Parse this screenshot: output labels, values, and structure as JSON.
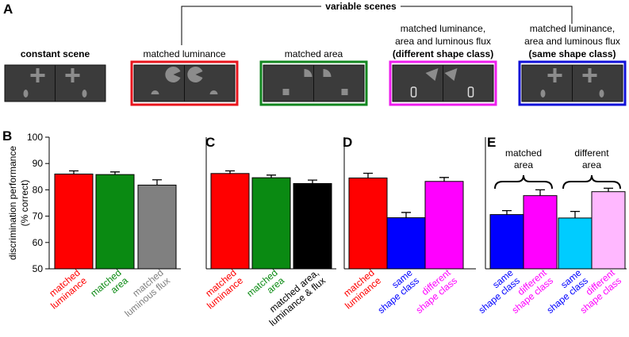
{
  "panel_a": {
    "label": "A",
    "group_title": "variable scenes",
    "scenes": [
      {
        "heading": "constant scene"
      },
      {
        "lines": [
          "matched luminance"
        ],
        "frame": "#e8141c"
      },
      {
        "lines": [
          "matched area"
        ],
        "frame": "#11861f"
      },
      {
        "lines": [
          "matched luminance,",
          "area and luminous flux"
        ],
        "note": "(different shape class)",
        "frame": "#ee1cee"
      },
      {
        "lines": [
          "matched luminance,",
          "area and luminous flux"
        ],
        "note": "(same shape class)",
        "frame": "#1010d8"
      }
    ]
  },
  "chart_data": [
    {
      "type": "bar",
      "label": "B",
      "ylabel": [
        "discrimination performance",
        "(% correct)"
      ],
      "ylim": [
        50,
        100
      ],
      "yticks": [
        50,
        60,
        70,
        80,
        90,
        100
      ],
      "categories": [
        [
          "matched",
          "luminance"
        ],
        [
          "matched",
          "area"
        ],
        [
          "matched",
          "luminous flux"
        ]
      ],
      "values": [
        86,
        85.8,
        81.8
      ],
      "errors": [
        1.2,
        1.0,
        2.0
      ],
      "colors": [
        "#ff0000",
        "#0a8a12",
        "#808080"
      ],
      "label_colors": [
        "#ff0000",
        "#0a8a12",
        "#808080"
      ]
    },
    {
      "type": "bar",
      "label": "C",
      "ylim": [
        50,
        100
      ],
      "categories": [
        [
          "matched",
          "luminance"
        ],
        [
          "matched",
          "area"
        ],
        [
          "matched area,",
          "luminance & flux"
        ]
      ],
      "values": [
        86.2,
        84.6,
        82.4
      ],
      "errors": [
        1.0,
        1.0,
        1.3
      ],
      "colors": [
        "#ff0000",
        "#0a8a12",
        "#000000"
      ],
      "label_colors": [
        "#ff0000",
        "#0a8a12",
        "#000000"
      ]
    },
    {
      "type": "bar",
      "label": "D",
      "ylim": [
        50,
        100
      ],
      "categories": [
        [
          "matched",
          "luminance"
        ],
        [
          "same",
          "shape class"
        ],
        [
          "different",
          "shape class"
        ]
      ],
      "values": [
        84.5,
        69.4,
        83.2
      ],
      "errors": [
        1.8,
        2.0,
        1.5
      ],
      "colors": [
        "#ff0000",
        "#0000ff",
        "#ff00ff"
      ],
      "label_colors": [
        "#ff0000",
        "#0000ff",
        "#ff00ff"
      ]
    },
    {
      "type": "bar",
      "label": "E",
      "ylim": [
        50,
        100
      ],
      "categories": [
        [
          "same",
          "shape class"
        ],
        [
          "different",
          "shape class"
        ],
        [
          "same",
          "shape class"
        ],
        [
          "different",
          "shape class"
        ]
      ],
      "values": [
        70.6,
        77.8,
        69.3,
        79.3
      ],
      "errors": [
        1.5,
        2.2,
        2.5,
        1.3
      ],
      "colors": [
        "#0000ff",
        "#ff00ff",
        "#00ccff",
        "#ffb8ff"
      ],
      "label_colors": [
        "#0000ff",
        "#ff00ff",
        "#0000ff",
        "#ff00ff"
      ],
      "annotations": [
        [
          "matched",
          "area"
        ],
        [
          "different",
          "area"
        ]
      ]
    }
  ]
}
